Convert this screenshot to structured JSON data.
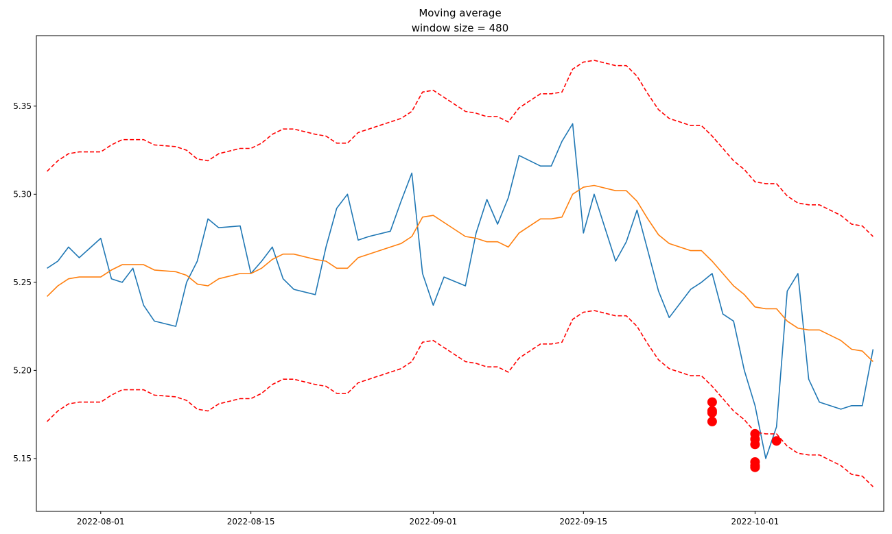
{
  "chart_data": {
    "type": "line",
    "title": "Moving average",
    "subtitle": "window size = 480",
    "xlabel": "",
    "ylabel": "",
    "x_range": [
      "2022-07-26",
      "2022-10-13"
    ],
    "ylim": [
      5.12,
      5.39
    ],
    "x_ticks": [
      "2022-08-01",
      "2022-08-15",
      "2022-09-01",
      "2022-09-15",
      "2022-10-01"
    ],
    "y_ticks": [
      5.15,
      5.2,
      5.25,
      5.3,
      5.35
    ],
    "grid": false,
    "legend": "none",
    "colors": {
      "price": "#1f77b4",
      "moving_average": "#ff7f0e",
      "bands": "#ff0000",
      "anomalies": "#ff0000"
    },
    "series": [
      {
        "key": "price",
        "style": "solid",
        "x": [
          "2022-07-27",
          "2022-07-28",
          "2022-07-29",
          "2022-07-30",
          "2022-08-01",
          "2022-08-02",
          "2022-08-03",
          "2022-08-04",
          "2022-08-05",
          "2022-08-06",
          "2022-08-08",
          "2022-08-09",
          "2022-08-10",
          "2022-08-11",
          "2022-08-12",
          "2022-08-14",
          "2022-08-15",
          "2022-08-16",
          "2022-08-17",
          "2022-08-18",
          "2022-08-19",
          "2022-08-21",
          "2022-08-22",
          "2022-08-23",
          "2022-08-24",
          "2022-08-25",
          "2022-08-26",
          "2022-08-28",
          "2022-08-29",
          "2022-08-30",
          "2022-08-31",
          "2022-09-01",
          "2022-09-02",
          "2022-09-04",
          "2022-09-05",
          "2022-09-06",
          "2022-09-07",
          "2022-09-08",
          "2022-09-09",
          "2022-09-11",
          "2022-09-12",
          "2022-09-13",
          "2022-09-14",
          "2022-09-15",
          "2022-09-16",
          "2022-09-18",
          "2022-09-19",
          "2022-09-20",
          "2022-09-21",
          "2022-09-22",
          "2022-09-23",
          "2022-09-25",
          "2022-09-26",
          "2022-09-27",
          "2022-09-28",
          "2022-09-29",
          "2022-09-30",
          "2022-10-01",
          "2022-10-02",
          "2022-10-03",
          "2022-10-04",
          "2022-10-05",
          "2022-10-06",
          "2022-10-07",
          "2022-10-09",
          "2022-10-10",
          "2022-10-11",
          "2022-10-12"
        ],
        "y": [
          5.258,
          5.262,
          5.27,
          5.264,
          5.275,
          5.252,
          5.25,
          5.258,
          5.237,
          5.228,
          5.225,
          5.25,
          5.262,
          5.286,
          5.281,
          5.282,
          5.255,
          5.262,
          5.27,
          5.252,
          5.246,
          5.243,
          5.27,
          5.292,
          5.3,
          5.274,
          5.276,
          5.279,
          5.296,
          5.312,
          5.255,
          5.237,
          5.253,
          5.248,
          5.278,
          5.297,
          5.283,
          5.298,
          5.322,
          5.316,
          5.316,
          5.33,
          5.34,
          5.278,
          5.3,
          5.262,
          5.273,
          5.291,
          5.268,
          5.245,
          5.23,
          5.246,
          5.25,
          5.255,
          5.232,
          5.228,
          5.2,
          5.18,
          5.15,
          5.168,
          5.245,
          5.255,
          5.195,
          5.182,
          5.178,
          5.18,
          5.18,
          5.212
        ]
      },
      {
        "key": "moving_average",
        "style": "solid",
        "x": [
          "2022-07-27",
          "2022-07-28",
          "2022-07-29",
          "2022-07-30",
          "2022-08-01",
          "2022-08-02",
          "2022-08-03",
          "2022-08-04",
          "2022-08-05",
          "2022-08-06",
          "2022-08-08",
          "2022-08-09",
          "2022-08-10",
          "2022-08-11",
          "2022-08-12",
          "2022-08-14",
          "2022-08-15",
          "2022-08-16",
          "2022-08-17",
          "2022-08-18",
          "2022-08-19",
          "2022-08-21",
          "2022-08-22",
          "2022-08-23",
          "2022-08-24",
          "2022-08-25",
          "2022-08-26",
          "2022-08-28",
          "2022-08-29",
          "2022-08-30",
          "2022-08-31",
          "2022-09-01",
          "2022-09-02",
          "2022-09-04",
          "2022-09-05",
          "2022-09-06",
          "2022-09-07",
          "2022-09-08",
          "2022-09-09",
          "2022-09-11",
          "2022-09-12",
          "2022-09-13",
          "2022-09-14",
          "2022-09-15",
          "2022-09-16",
          "2022-09-18",
          "2022-09-19",
          "2022-09-20",
          "2022-09-21",
          "2022-09-22",
          "2022-09-23",
          "2022-09-25",
          "2022-09-26",
          "2022-09-27",
          "2022-09-28",
          "2022-09-29",
          "2022-09-30",
          "2022-10-01",
          "2022-10-02",
          "2022-10-03",
          "2022-10-04",
          "2022-10-05",
          "2022-10-06",
          "2022-10-07",
          "2022-10-09",
          "2022-10-10",
          "2022-10-11",
          "2022-10-12"
        ],
        "y": [
          5.242,
          5.248,
          5.252,
          5.253,
          5.253,
          5.257,
          5.26,
          5.26,
          5.26,
          5.257,
          5.256,
          5.254,
          5.249,
          5.248,
          5.252,
          5.255,
          5.255,
          5.258,
          5.263,
          5.266,
          5.266,
          5.263,
          5.262,
          5.258,
          5.258,
          5.264,
          5.266,
          5.27,
          5.272,
          5.276,
          5.287,
          5.288,
          5.284,
          5.276,
          5.275,
          5.273,
          5.273,
          5.27,
          5.278,
          5.286,
          5.286,
          5.287,
          5.3,
          5.304,
          5.305,
          5.302,
          5.302,
          5.296,
          5.286,
          5.277,
          5.272,
          5.268,
          5.268,
          5.262,
          5.255,
          5.248,
          5.243,
          5.236,
          5.235,
          5.235,
          5.228,
          5.224,
          5.223,
          5.223,
          5.217,
          5.212,
          5.211,
          5.205
        ]
      },
      {
        "key": "upper_band",
        "style": "dashed",
        "x": [
          "2022-07-27",
          "2022-07-28",
          "2022-07-29",
          "2022-07-30",
          "2022-08-01",
          "2022-08-02",
          "2022-08-03",
          "2022-08-04",
          "2022-08-05",
          "2022-08-06",
          "2022-08-08",
          "2022-08-09",
          "2022-08-10",
          "2022-08-11",
          "2022-08-12",
          "2022-08-14",
          "2022-08-15",
          "2022-08-16",
          "2022-08-17",
          "2022-08-18",
          "2022-08-19",
          "2022-08-21",
          "2022-08-22",
          "2022-08-23",
          "2022-08-24",
          "2022-08-25",
          "2022-08-26",
          "2022-08-28",
          "2022-08-29",
          "2022-08-30",
          "2022-08-31",
          "2022-09-01",
          "2022-09-02",
          "2022-09-04",
          "2022-09-05",
          "2022-09-06",
          "2022-09-07",
          "2022-09-08",
          "2022-09-09",
          "2022-09-11",
          "2022-09-12",
          "2022-09-13",
          "2022-09-14",
          "2022-09-15",
          "2022-09-16",
          "2022-09-18",
          "2022-09-19",
          "2022-09-20",
          "2022-09-21",
          "2022-09-22",
          "2022-09-23",
          "2022-09-25",
          "2022-09-26",
          "2022-09-27",
          "2022-09-28",
          "2022-09-29",
          "2022-09-30",
          "2022-10-01",
          "2022-10-02",
          "2022-10-03",
          "2022-10-04",
          "2022-10-05",
          "2022-10-06",
          "2022-10-07",
          "2022-10-09",
          "2022-10-10",
          "2022-10-11",
          "2022-10-12"
        ],
        "y": [
          5.313,
          5.319,
          5.323,
          5.324,
          5.324,
          5.328,
          5.331,
          5.331,
          5.331,
          5.328,
          5.327,
          5.325,
          5.32,
          5.319,
          5.323,
          5.326,
          5.326,
          5.329,
          5.334,
          5.337,
          5.337,
          5.334,
          5.333,
          5.329,
          5.329,
          5.335,
          5.337,
          5.341,
          5.343,
          5.347,
          5.358,
          5.359,
          5.355,
          5.347,
          5.346,
          5.344,
          5.344,
          5.341,
          5.349,
          5.357,
          5.357,
          5.358,
          5.371,
          5.375,
          5.376,
          5.373,
          5.373,
          5.367,
          5.357,
          5.348,
          5.343,
          5.339,
          5.339,
          5.333,
          5.326,
          5.319,
          5.314,
          5.307,
          5.306,
          5.306,
          5.299,
          5.295,
          5.294,
          5.294,
          5.288,
          5.283,
          5.282,
          5.276
        ]
      },
      {
        "key": "lower_band",
        "style": "dashed",
        "x": [
          "2022-07-27",
          "2022-07-28",
          "2022-07-29",
          "2022-07-30",
          "2022-08-01",
          "2022-08-02",
          "2022-08-03",
          "2022-08-04",
          "2022-08-05",
          "2022-08-06",
          "2022-08-08",
          "2022-08-09",
          "2022-08-10",
          "2022-08-11",
          "2022-08-12",
          "2022-08-14",
          "2022-08-15",
          "2022-08-16",
          "2022-08-17",
          "2022-08-18",
          "2022-08-19",
          "2022-08-21",
          "2022-08-22",
          "2022-08-23",
          "2022-08-24",
          "2022-08-25",
          "2022-08-26",
          "2022-08-28",
          "2022-08-29",
          "2022-08-30",
          "2022-08-31",
          "2022-09-01",
          "2022-09-02",
          "2022-09-04",
          "2022-09-05",
          "2022-09-06",
          "2022-09-07",
          "2022-09-08",
          "2022-09-09",
          "2022-09-11",
          "2022-09-12",
          "2022-09-13",
          "2022-09-14",
          "2022-09-15",
          "2022-09-16",
          "2022-09-18",
          "2022-09-19",
          "2022-09-20",
          "2022-09-21",
          "2022-09-22",
          "2022-09-23",
          "2022-09-25",
          "2022-09-26",
          "2022-09-27",
          "2022-09-28",
          "2022-09-29",
          "2022-09-30",
          "2022-10-01",
          "2022-10-02",
          "2022-10-03",
          "2022-10-04",
          "2022-10-05",
          "2022-10-06",
          "2022-10-07",
          "2022-10-09",
          "2022-10-10",
          "2022-10-11",
          "2022-10-12"
        ],
        "y": [
          5.171,
          5.177,
          5.181,
          5.182,
          5.182,
          5.186,
          5.189,
          5.189,
          5.189,
          5.186,
          5.185,
          5.183,
          5.178,
          5.177,
          5.181,
          5.184,
          5.184,
          5.187,
          5.192,
          5.195,
          5.195,
          5.192,
          5.191,
          5.187,
          5.187,
          5.193,
          5.195,
          5.199,
          5.201,
          5.205,
          5.216,
          5.217,
          5.213,
          5.205,
          5.204,
          5.202,
          5.202,
          5.199,
          5.207,
          5.215,
          5.215,
          5.216,
          5.229,
          5.233,
          5.234,
          5.231,
          5.231,
          5.225,
          5.215,
          5.206,
          5.201,
          5.197,
          5.197,
          5.191,
          5.184,
          5.177,
          5.172,
          5.165,
          5.164,
          5.164,
          5.157,
          5.153,
          5.152,
          5.152,
          5.146,
          5.141,
          5.14,
          5.134
        ]
      }
    ],
    "anomalies": {
      "x": [
        "2022-09-27",
        "2022-09-27",
        "2022-09-27",
        "2022-09-27",
        "2022-10-01",
        "2022-10-01",
        "2022-10-01",
        "2022-10-01",
        "2022-10-01",
        "2022-10-01",
        "2022-10-03"
      ],
      "y": [
        5.182,
        5.177,
        5.176,
        5.171,
        5.164,
        5.161,
        5.158,
        5.148,
        5.146,
        5.145,
        5.16
      ]
    }
  }
}
